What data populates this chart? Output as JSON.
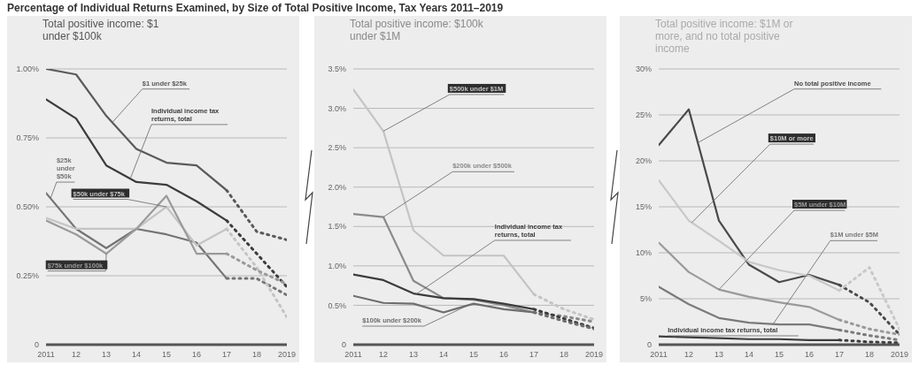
{
  "chart_data": [
    {
      "type": "line",
      "title": "Total positive income: $1 under $100k",
      "annotations": [
        "Percentage of Individual Returns Examined, by Size of Total Positive Income, Tax Years 2011–2019"
      ],
      "x": [
        2011,
        2012,
        2013,
        2014,
        2015,
        2016,
        2017
      ],
      "xlim": [
        2011,
        2019
      ],
      "xticks": [
        {
          "value": 2011,
          "label": "2011"
        },
        {
          "value": 2012,
          "label": "12"
        },
        {
          "value": 2013,
          "label": "13"
        },
        {
          "value": 2014,
          "label": "14"
        },
        {
          "value": 2015,
          "label": "15"
        },
        {
          "value": 2016,
          "label": "16"
        },
        {
          "value": 2017,
          "label": "17"
        },
        {
          "value": 2018,
          "label": "18"
        },
        {
          "value": 2019,
          "label": "2019"
        }
      ],
      "ylim": [
        0,
        1
      ],
      "yticks": [
        {
          "value": 0,
          "label": "0"
        },
        {
          "value": 0.25,
          "label": "0.25%"
        },
        {
          "value": 0.5,
          "label": "0.50%"
        },
        {
          "value": 0.75,
          "label": "0.75%"
        },
        {
          "value": 1,
          "label": "1.00%"
        }
      ],
      "grid": "y",
      "series": [
        {
          "name": "$1 under $25k",
          "color": "#5a5a5a",
          "values": [
            1.0,
            0.98,
            0.83,
            0.71,
            0.66,
            0.65,
            0.56
          ]
        },
        {
          "name": "Individual income tax returns, total",
          "color": "#3c3c3c",
          "values": [
            0.89,
            0.82,
            0.65,
            0.59,
            0.58,
            0.52,
            0.45
          ]
        },
        {
          "name": "$25k under $50k",
          "color": "#747474",
          "values": [
            0.55,
            0.42,
            0.35,
            0.42,
            0.4,
            0.37,
            0.24
          ]
        },
        {
          "name": "$50k under $75k",
          "color": "#c4c4c4",
          "values": [
            0.46,
            0.42,
            0.42,
            0.42,
            0.5,
            0.36,
            0.42
          ]
        },
        {
          "name": "$75k under $100k",
          "color": "#9a9a9a",
          "values": [
            0.45,
            0.4,
            0.33,
            0.42,
            0.54,
            0.33,
            0.33
          ]
        },
        {
          "color": "#5a5a5a",
          "line_style": "dotted",
          "x": [
            2017,
            2018,
            2019
          ],
          "values": [
            0.56,
            0.41,
            0.38
          ]
        },
        {
          "color": "#3c3c3c",
          "line_style": "dotted",
          "x": [
            2017,
            2018,
            2019
          ],
          "values": [
            0.45,
            0.33,
            0.21
          ]
        },
        {
          "color": "#747474",
          "line_style": "dotted",
          "x": [
            2017,
            2018,
            2019
          ],
          "values": [
            0.24,
            0.24,
            0.18
          ]
        },
        {
          "color": "#c4c4c4",
          "line_style": "dotted",
          "x": [
            2017,
            2018,
            2019
          ],
          "values": [
            0.42,
            0.28,
            0.1
          ]
        },
        {
          "color": "#9a9a9a",
          "line_style": "dotted",
          "x": [
            2017,
            2018,
            2019
          ],
          "values": [
            0.33,
            0.27,
            0.22
          ]
        }
      ]
    },
    {
      "type": "line",
      "title": "Total positive income: $100k under $1M",
      "x": [
        2011,
        2012,
        2013,
        2014,
        2015,
        2016,
        2017
      ],
      "xlim": [
        2011,
        2019
      ],
      "xticks": [
        {
          "value": 2011,
          "label": "2011"
        },
        {
          "value": 2012,
          "label": "12"
        },
        {
          "value": 2013,
          "label": "13"
        },
        {
          "value": 2014,
          "label": "14"
        },
        {
          "value": 2015,
          "label": "15"
        },
        {
          "value": 2016,
          "label": "16"
        },
        {
          "value": 2017,
          "label": "17"
        },
        {
          "value": 2018,
          "label": "18"
        },
        {
          "value": 2019,
          "label": "2019"
        }
      ],
      "ylim": [
        0,
        3.5
      ],
      "yticks": [
        {
          "value": 0,
          "label": "0"
        },
        {
          "value": 0.5,
          "label": "0.5%"
        },
        {
          "value": 1,
          "label": "1.0%"
        },
        {
          "value": 1.5,
          "label": "1.5%"
        },
        {
          "value": 2,
          "label": "2.0%"
        },
        {
          "value": 2.5,
          "label": "2.5%"
        },
        {
          "value": 3,
          "label": "3.0%"
        },
        {
          "value": 3.5,
          "label": "3.5%"
        }
      ],
      "grid": "y",
      "series": [
        {
          "name": "$500k under $1M",
          "color": "#c4c4c4",
          "values": [
            3.24,
            2.71,
            1.45,
            1.13,
            1.13,
            1.13,
            0.64
          ]
        },
        {
          "name": "$200k under $500k",
          "color": "#8a8a8a",
          "values": [
            1.66,
            1.62,
            0.81,
            0.59,
            0.57,
            0.5,
            0.41
          ]
        },
        {
          "name": "Individual income tax returns, total",
          "color": "#3c3c3c",
          "values": [
            0.89,
            0.82,
            0.65,
            0.59,
            0.58,
            0.52,
            0.45
          ]
        },
        {
          "name": "$100k under $200k",
          "color": "#6e6e6e",
          "values": [
            0.62,
            0.53,
            0.52,
            0.41,
            0.52,
            0.45,
            0.41
          ]
        },
        {
          "color": "#c4c4c4",
          "line_style": "dotted",
          "x": [
            2017,
            2018,
            2019
          ],
          "values": [
            0.64,
            0.45,
            0.32
          ]
        },
        {
          "color": "#8a8a8a",
          "line_style": "dotted",
          "x": [
            2017,
            2018,
            2019
          ],
          "values": [
            0.41,
            0.36,
            0.29
          ]
        },
        {
          "color": "#3c3c3c",
          "line_style": "dotted",
          "x": [
            2017,
            2018,
            2019
          ],
          "values": [
            0.45,
            0.33,
            0.21
          ]
        },
        {
          "color": "#6e6e6e",
          "line_style": "dotted",
          "x": [
            2017,
            2018,
            2019
          ],
          "values": [
            0.41,
            0.3,
            0.2
          ]
        }
      ]
    },
    {
      "type": "line",
      "title": "Total positive income: $1M or more, and no total positive income",
      "x": [
        2011,
        2012,
        2013,
        2014,
        2015,
        2016,
        2017
      ],
      "xlim": [
        2011,
        2019
      ],
      "xticks": [
        {
          "value": 2011,
          "label": "2011"
        },
        {
          "value": 2012,
          "label": "12"
        },
        {
          "value": 2013,
          "label": "13"
        },
        {
          "value": 2014,
          "label": "14"
        },
        {
          "value": 2015,
          "label": "15"
        },
        {
          "value": 2016,
          "label": "16"
        },
        {
          "value": 2017,
          "label": "17"
        },
        {
          "value": 2018,
          "label": "18"
        },
        {
          "value": 2019,
          "label": "2019"
        }
      ],
      "ylim": [
        0,
        30
      ],
      "yticks": [
        {
          "value": 0,
          "label": "0"
        },
        {
          "value": 5,
          "label": "5%"
        },
        {
          "value": 10,
          "label": "10%"
        },
        {
          "value": 15,
          "label": "15%"
        },
        {
          "value": 20,
          "label": "20%"
        },
        {
          "value": 25,
          "label": "25%"
        },
        {
          "value": 30,
          "label": "30%"
        }
      ],
      "grid": "y",
      "series": [
        {
          "name": "No total positive income",
          "color": "#4a4a4a",
          "values": [
            21.7,
            25.6,
            13.5,
            8.7,
            6.8,
            7.6,
            6.5
          ]
        },
        {
          "name": "$10M or more",
          "color": "#c8c8c8",
          "values": [
            17.9,
            13.5,
            11.3,
            9.0,
            8.1,
            7.5,
            5.9
          ]
        },
        {
          "name": "$5M under $10M",
          "color": "#9a9a9a",
          "values": [
            11.1,
            7.9,
            6.0,
            5.2,
            4.6,
            4.1,
            2.7
          ]
        },
        {
          "name": "$1M under $5M",
          "color": "#7a7a7a",
          "values": [
            6.3,
            4.4,
            2.9,
            2.4,
            2.2,
            2.2,
            1.6
          ]
        },
        {
          "name": "Individual income tax returns, total",
          "color": "#3c3c3c",
          "values": [
            0.9,
            0.8,
            0.7,
            0.6,
            0.6,
            0.5,
            0.5
          ]
        },
        {
          "color": "#4a4a4a",
          "line_style": "dotted",
          "x": [
            2017,
            2018,
            2019
          ],
          "values": [
            6.5,
            4.6,
            1.1
          ]
        },
        {
          "color": "#c8c8c8",
          "line_style": "dotted",
          "x": [
            2017,
            2018,
            2019
          ],
          "values": [
            5.9,
            8.4,
            1.7
          ]
        },
        {
          "color": "#9a9a9a",
          "line_style": "dotted",
          "x": [
            2017,
            2018,
            2019
          ],
          "values": [
            2.7,
            1.7,
            1.1
          ]
        },
        {
          "color": "#7a7a7a",
          "line_style": "dotted",
          "x": [
            2017,
            2018,
            2019
          ],
          "values": [
            1.6,
            1.0,
            0.5
          ]
        },
        {
          "color": "#3c3c3c",
          "line_style": "dotted",
          "x": [
            2017,
            2018,
            2019
          ],
          "values": [
            0.5,
            0.3,
            0.2
          ]
        }
      ]
    }
  ]
}
